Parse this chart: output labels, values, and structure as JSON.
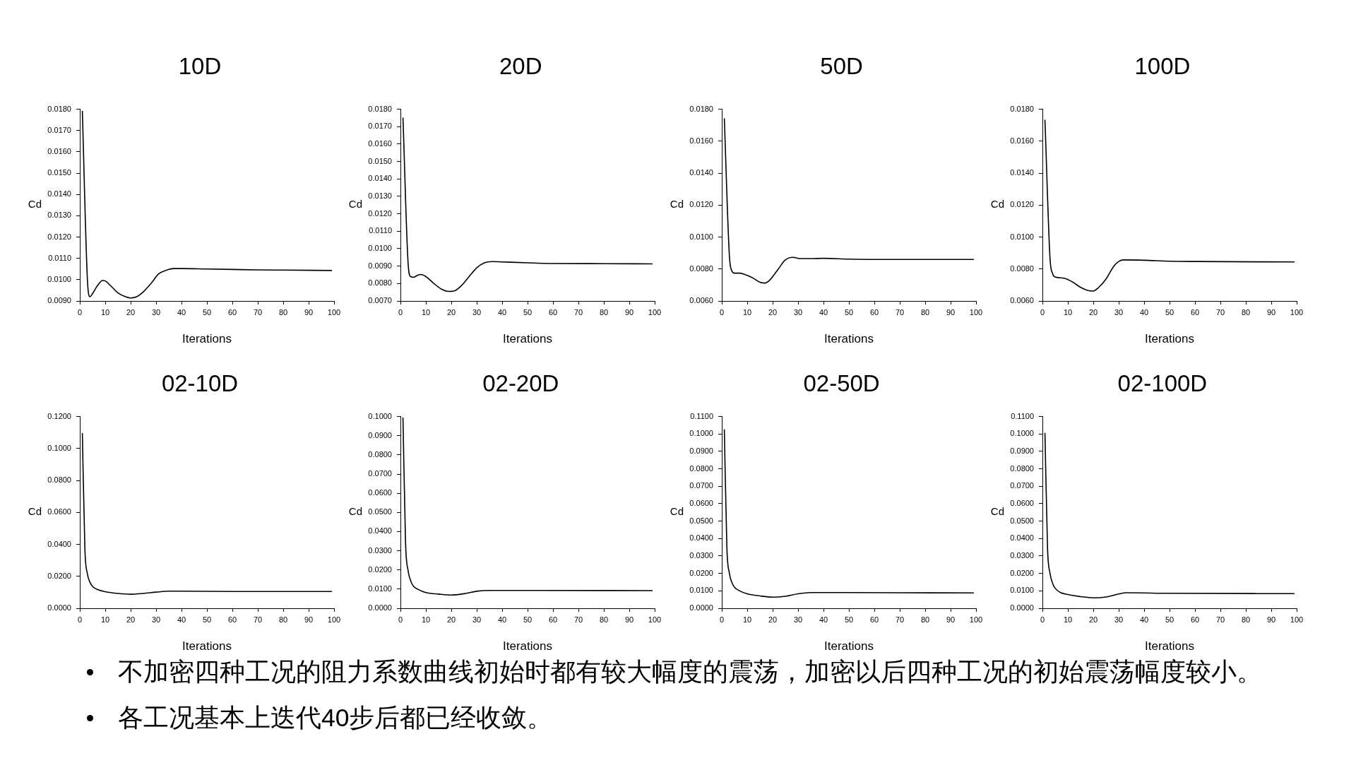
{
  "chart_data": [
    {
      "type": "line",
      "title": "10D",
      "xlabel": "Iterations",
      "ylabel": "Cd",
      "xlim": [
        0,
        100
      ],
      "xticks": [
        0,
        10,
        20,
        30,
        40,
        50,
        60,
        70,
        80,
        90,
        100
      ],
      "ylim": [
        0.009,
        0.018
      ],
      "yticks": [
        {
          "value": 0.009,
          "label": "0.0090"
        },
        {
          "value": 0.01,
          "label": "0.0100"
        },
        {
          "value": 0.011,
          "label": "0.0110"
        },
        {
          "value": 0.012,
          "label": "0.0120"
        },
        {
          "value": 0.013,
          "label": "0.0130"
        },
        {
          "value": 0.014,
          "label": "0.0140"
        },
        {
          "value": 0.015,
          "label": "0.0150"
        },
        {
          "value": 0.016,
          "label": "0.0160"
        },
        {
          "value": 0.017,
          "label": "0.0170"
        },
        {
          "value": 0.018,
          "label": "0.0180"
        }
      ],
      "color": "#000000",
      "x": [
        1,
        3,
        4,
        5,
        7,
        9,
        10,
        12,
        15,
        18,
        20,
        22,
        25,
        28,
        31,
        34,
        37,
        40,
        50,
        60,
        70,
        80,
        99
      ],
      "values": [
        0.0179,
        0.00998,
        0.0092,
        0.00934,
        0.00973,
        0.00996,
        0.00994,
        0.00973,
        0.00938,
        0.0092,
        0.00914,
        0.00918,
        0.00943,
        0.00982,
        0.01027,
        0.01044,
        0.01052,
        0.01052,
        0.0105,
        0.01048,
        0.01046,
        0.01045,
        0.01043
      ]
    },
    {
      "type": "line",
      "title": "20D",
      "xlabel": "Iterations",
      "ylabel": "Cd",
      "xlim": [
        0,
        100
      ],
      "xticks": [
        0,
        10,
        20,
        30,
        40,
        50,
        60,
        70,
        80,
        90,
        100
      ],
      "ylim": [
        0.007,
        0.018
      ],
      "yticks": [
        {
          "value": 0.007,
          "label": "0.0070"
        },
        {
          "value": 0.008,
          "label": "0.0080"
        },
        {
          "value": 0.009,
          "label": "0.0090"
        },
        {
          "value": 0.01,
          "label": "0.0100"
        },
        {
          "value": 0.011,
          "label": "0.0110"
        },
        {
          "value": 0.012,
          "label": "0.0120"
        },
        {
          "value": 0.013,
          "label": "0.0130"
        },
        {
          "value": 0.014,
          "label": "0.0140"
        },
        {
          "value": 0.015,
          "label": "0.0150"
        },
        {
          "value": 0.016,
          "label": "0.0160"
        },
        {
          "value": 0.017,
          "label": "0.0170"
        },
        {
          "value": 0.018,
          "label": "0.0180"
        }
      ],
      "color": "#000000",
      "x": [
        1,
        3,
        4,
        5,
        7,
        8,
        10,
        13,
        16,
        19,
        21,
        24,
        27,
        30,
        33,
        36,
        40,
        50,
        60,
        80,
        99
      ],
      "values": [
        0.0175,
        0.00919,
        0.0084,
        0.00836,
        0.00849,
        0.00852,
        0.0084,
        0.00802,
        0.00769,
        0.00755,
        0.00757,
        0.00788,
        0.0084,
        0.0089,
        0.00919,
        0.00926,
        0.00924,
        0.00919,
        0.00915,
        0.00914,
        0.00913
      ]
    },
    {
      "type": "line",
      "title": "50D",
      "xlabel": "Iterations",
      "ylabel": "Cd",
      "xlim": [
        0,
        100
      ],
      "xticks": [
        0,
        10,
        20,
        30,
        40,
        50,
        60,
        70,
        80,
        90,
        100
      ],
      "ylim": [
        0.006,
        0.018
      ],
      "yticks": [
        {
          "value": 0.006,
          "label": "0.0060"
        },
        {
          "value": 0.008,
          "label": "0.0080"
        },
        {
          "value": 0.01,
          "label": "0.0100"
        },
        {
          "value": 0.012,
          "label": "0.0120"
        },
        {
          "value": 0.014,
          "label": "0.0140"
        },
        {
          "value": 0.016,
          "label": "0.0160"
        },
        {
          "value": 0.018,
          "label": "0.0180"
        }
      ],
      "color": "#000000",
      "x": [
        1,
        3,
        4,
        5,
        7,
        9,
        12,
        15,
        17,
        19,
        22,
        25,
        28,
        31,
        35,
        40,
        50,
        60,
        99
      ],
      "values": [
        0.0174,
        0.0088,
        0.00787,
        0.00774,
        0.00774,
        0.00766,
        0.00746,
        0.00717,
        0.00712,
        0.00733,
        0.00795,
        0.00857,
        0.00873,
        0.00865,
        0.00865,
        0.00867,
        0.00862,
        0.0086,
        0.0086
      ]
    },
    {
      "type": "line",
      "title": "100D",
      "xlabel": "Iterations",
      "ylabel": "Cd",
      "xlim": [
        0,
        100
      ],
      "xticks": [
        0,
        10,
        20,
        30,
        40,
        50,
        60,
        70,
        80,
        90,
        100
      ],
      "ylim": [
        0.006,
        0.018
      ],
      "yticks": [
        {
          "value": 0.006,
          "label": "0.0060"
        },
        {
          "value": 0.008,
          "label": "0.0080"
        },
        {
          "value": 0.01,
          "label": "0.0100"
        },
        {
          "value": 0.012,
          "label": "0.0120"
        },
        {
          "value": 0.014,
          "label": "0.0140"
        },
        {
          "value": 0.016,
          "label": "0.0160"
        },
        {
          "value": 0.018,
          "label": "0.0180"
        }
      ],
      "color": "#000000",
      "x": [
        1,
        3,
        4,
        5,
        7,
        9,
        12,
        15,
        18,
        20,
        22,
        25,
        28,
        30,
        32,
        40,
        50,
        60,
        99
      ],
      "values": [
        0.01732,
        0.00863,
        0.00771,
        0.0075,
        0.00745,
        0.0074,
        0.00717,
        0.00685,
        0.00665,
        0.00662,
        0.00683,
        0.00737,
        0.00816,
        0.00847,
        0.00857,
        0.00855,
        0.00849,
        0.00847,
        0.00844
      ]
    },
    {
      "type": "line",
      "title": "02-10D",
      "xlabel": "Iterations",
      "ylabel": "Cd",
      "xlim": [
        0,
        100
      ],
      "xticks": [
        0,
        10,
        20,
        30,
        40,
        50,
        60,
        70,
        80,
        90,
        100
      ],
      "ylim": [
        0,
        0.12
      ],
      "yticks": [
        {
          "value": 0,
          "label": "0.0000"
        },
        {
          "value": 0.02,
          "label": "0.0200"
        },
        {
          "value": 0.04,
          "label": "0.0400"
        },
        {
          "value": 0.06,
          "label": "0.0600"
        },
        {
          "value": 0.08,
          "label": "0.0800"
        },
        {
          "value": 0.1,
          "label": "0.1000"
        },
        {
          "value": 0.12,
          "label": "0.1200"
        }
      ],
      "color": "#000000",
      "x": [
        1,
        2,
        3,
        4,
        5,
        7,
        10,
        15,
        20,
        25,
        30,
        35,
        40,
        60,
        99
      ],
      "values": [
        0.1094,
        0.0371,
        0.0215,
        0.0163,
        0.0137,
        0.0117,
        0.0104,
        0.0093,
        0.0088,
        0.0093,
        0.0101,
        0.0107,
        0.0107,
        0.0105,
        0.0105
      ]
    },
    {
      "type": "line",
      "title": "02-20D",
      "xlabel": "Iterations",
      "ylabel": "Cd",
      "xlim": [
        0,
        100
      ],
      "xticks": [
        0,
        10,
        20,
        30,
        40,
        50,
        60,
        70,
        80,
        90,
        100
      ],
      "ylim": [
        0,
        0.1
      ],
      "yticks": [
        {
          "value": 0,
          "label": "0.0000"
        },
        {
          "value": 0.01,
          "label": "0.0100"
        },
        {
          "value": 0.02,
          "label": "0.0200"
        },
        {
          "value": 0.03,
          "label": "0.0300"
        },
        {
          "value": 0.04,
          "label": "0.0400"
        },
        {
          "value": 0.05,
          "label": "0.0500"
        },
        {
          "value": 0.06,
          "label": "0.0600"
        },
        {
          "value": 0.07,
          "label": "0.0700"
        },
        {
          "value": 0.08,
          "label": "0.0800"
        },
        {
          "value": 0.09,
          "label": "0.0900"
        },
        {
          "value": 0.1,
          "label": "0.1000"
        }
      ],
      "color": "#000000",
      "x": [
        1,
        2,
        3,
        4,
        5,
        7,
        10,
        15,
        20,
        25,
        30,
        35,
        50,
        99
      ],
      "values": [
        0.0993,
        0.0345,
        0.0197,
        0.0145,
        0.0117,
        0.0098,
        0.0082,
        0.0074,
        0.0069,
        0.0076,
        0.0089,
        0.0093,
        0.0093,
        0.0092
      ]
    },
    {
      "type": "line",
      "title": "02-50D",
      "xlabel": "Iterations",
      "ylabel": "Cd",
      "xlim": [
        0,
        100
      ],
      "xticks": [
        0,
        10,
        20,
        30,
        40,
        50,
        60,
        70,
        80,
        90,
        100
      ],
      "ylim": [
        0,
        0.11
      ],
      "yticks": [
        {
          "value": 0,
          "label": "0.0000"
        },
        {
          "value": 0.01,
          "label": "0.0100"
        },
        {
          "value": 0.02,
          "label": "0.0200"
        },
        {
          "value": 0.03,
          "label": "0.0300"
        },
        {
          "value": 0.04,
          "label": "0.0400"
        },
        {
          "value": 0.05,
          "label": "0.0500"
        },
        {
          "value": 0.06,
          "label": "0.0600"
        },
        {
          "value": 0.07,
          "label": "0.0700"
        },
        {
          "value": 0.08,
          "label": "0.0800"
        },
        {
          "value": 0.09,
          "label": "0.0900"
        },
        {
          "value": 0.1,
          "label": "0.1000"
        },
        {
          "value": 0.11,
          "label": "0.1100"
        }
      ],
      "color": "#000000",
      "x": [
        1,
        2,
        3,
        4,
        5,
        7,
        10,
        15,
        20,
        25,
        30,
        35,
        50,
        99
      ],
      "values": [
        0.1024,
        0.0349,
        0.02,
        0.0147,
        0.0121,
        0.01,
        0.0083,
        0.0071,
        0.0064,
        0.0069,
        0.0083,
        0.009,
        0.009,
        0.0088
      ]
    },
    {
      "type": "line",
      "title": "02-100D",
      "xlabel": "Iterations",
      "ylabel": "Cd",
      "xlim": [
        0,
        100
      ],
      "xticks": [
        0,
        10,
        20,
        30,
        40,
        50,
        60,
        70,
        80,
        90,
        100
      ],
      "ylim": [
        0,
        0.11
      ],
      "yticks": [
        {
          "value": 0,
          "label": "0.0000"
        },
        {
          "value": 0.01,
          "label": "0.0100"
        },
        {
          "value": 0.02,
          "label": "0.0200"
        },
        {
          "value": 0.03,
          "label": "0.0300"
        },
        {
          "value": 0.04,
          "label": "0.0400"
        },
        {
          "value": 0.05,
          "label": "0.0500"
        },
        {
          "value": 0.06,
          "label": "0.0600"
        },
        {
          "value": 0.07,
          "label": "0.0700"
        },
        {
          "value": 0.08,
          "label": "0.0800"
        },
        {
          "value": 0.09,
          "label": "0.0900"
        },
        {
          "value": 0.1,
          "label": "0.1000"
        },
        {
          "value": 0.11,
          "label": "0.1100"
        }
      ],
      "color": "#000000",
      "x": [
        1,
        2,
        3,
        4,
        5,
        7,
        10,
        15,
        20,
        25,
        30,
        33,
        50,
        99
      ],
      "values": [
        0.1004,
        0.0348,
        0.0199,
        0.0144,
        0.0115,
        0.0091,
        0.0079,
        0.0067,
        0.006,
        0.0065,
        0.0082,
        0.0089,
        0.0086,
        0.0084
      ]
    },
    {
      "type": "other",
      "annotations": [
        "不加密四种工况的阻力系数曲线初始时都有较大幅度的震荡，加密以后四种工况的初始震荡幅度较小。",
        "各工况基本上迭代40步后都已经收敛。"
      ]
    }
  ]
}
